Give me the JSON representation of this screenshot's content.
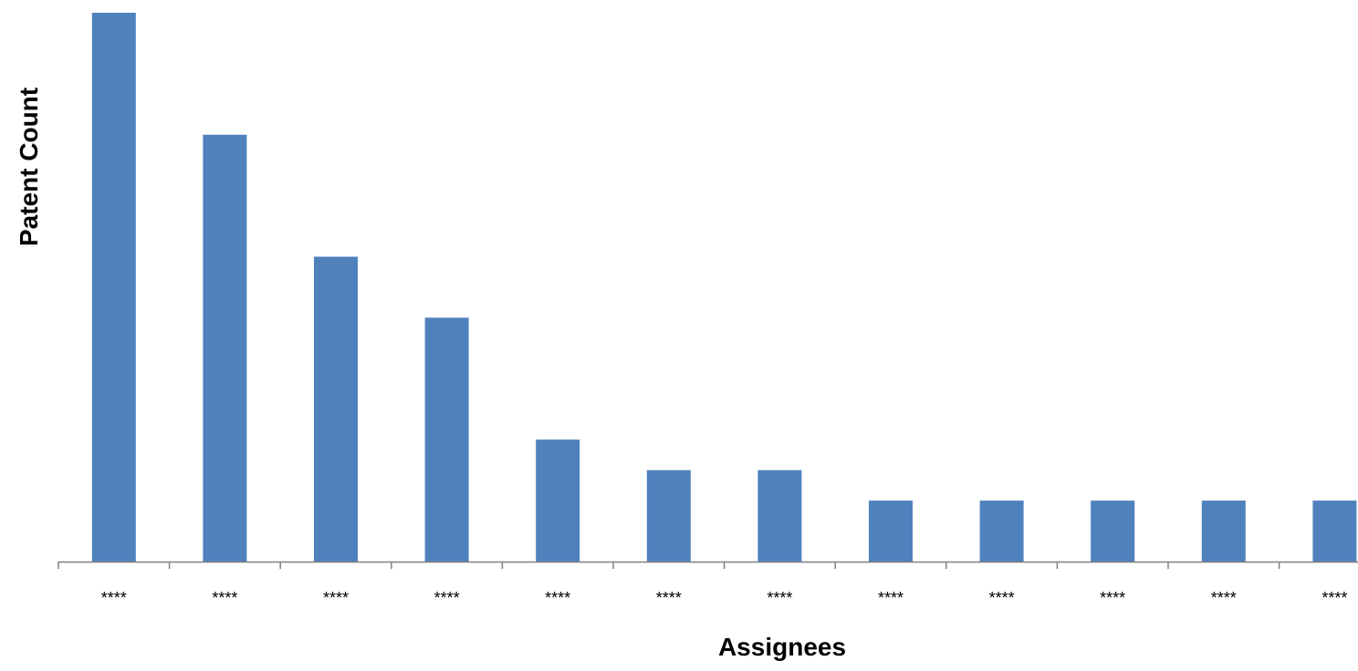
{
  "chart_data": {
    "type": "bar",
    "title": "",
    "xlabel": "Assignees",
    "ylabel": "Patent Count",
    "categories": [
      "****",
      "****",
      "****",
      "****",
      "****",
      "****",
      "****",
      "****",
      "****",
      "****",
      "****",
      "****"
    ],
    "values": [
      18,
      14,
      10,
      8,
      4,
      3,
      3,
      2,
      2,
      2,
      2,
      2
    ],
    "ylim": [
      0,
      18
    ],
    "grid": false,
    "legend": "none",
    "colors": {
      "bar": "#4f81bd",
      "axis": "#808080",
      "text": "#000000"
    }
  }
}
